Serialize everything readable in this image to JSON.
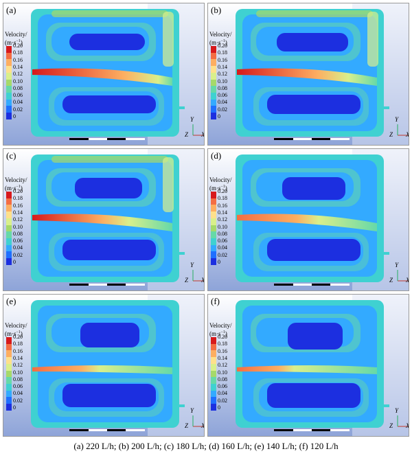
{
  "colorbar": {
    "title_line1": "Velocity/",
    "title_unit": "(m·s",
    "title_exp": "−1",
    "title_close": ")",
    "ticks": [
      "0.20",
      "0.18",
      "0.16",
      "0.14",
      "0.12",
      "0.10",
      "0.08",
      "0.06",
      "0.04",
      "0.02",
      "0"
    ],
    "colors": [
      "#d7191c",
      "#f46d43",
      "#fdae61",
      "#fee08b",
      "#d9ef8b",
      "#a6d96a",
      "#66d9a8",
      "#3fd1d1",
      "#33aaff",
      "#1f6fff",
      "#1c2fe0"
    ]
  },
  "axis": {
    "y": "Y",
    "z": "Z",
    "x": "X"
  },
  "panels": [
    {
      "label": "(a)"
    },
    {
      "label": "(b)"
    },
    {
      "label": "(c)"
    },
    {
      "label": "(d)"
    },
    {
      "label": "(e)"
    },
    {
      "label": "(f)"
    }
  ],
  "caption": "(a) 220 L/h; (b) 200 L/h; (c) 180 L/h; (d) 160 L/h; (e) 140 L/h; (f) 120 L/h"
}
